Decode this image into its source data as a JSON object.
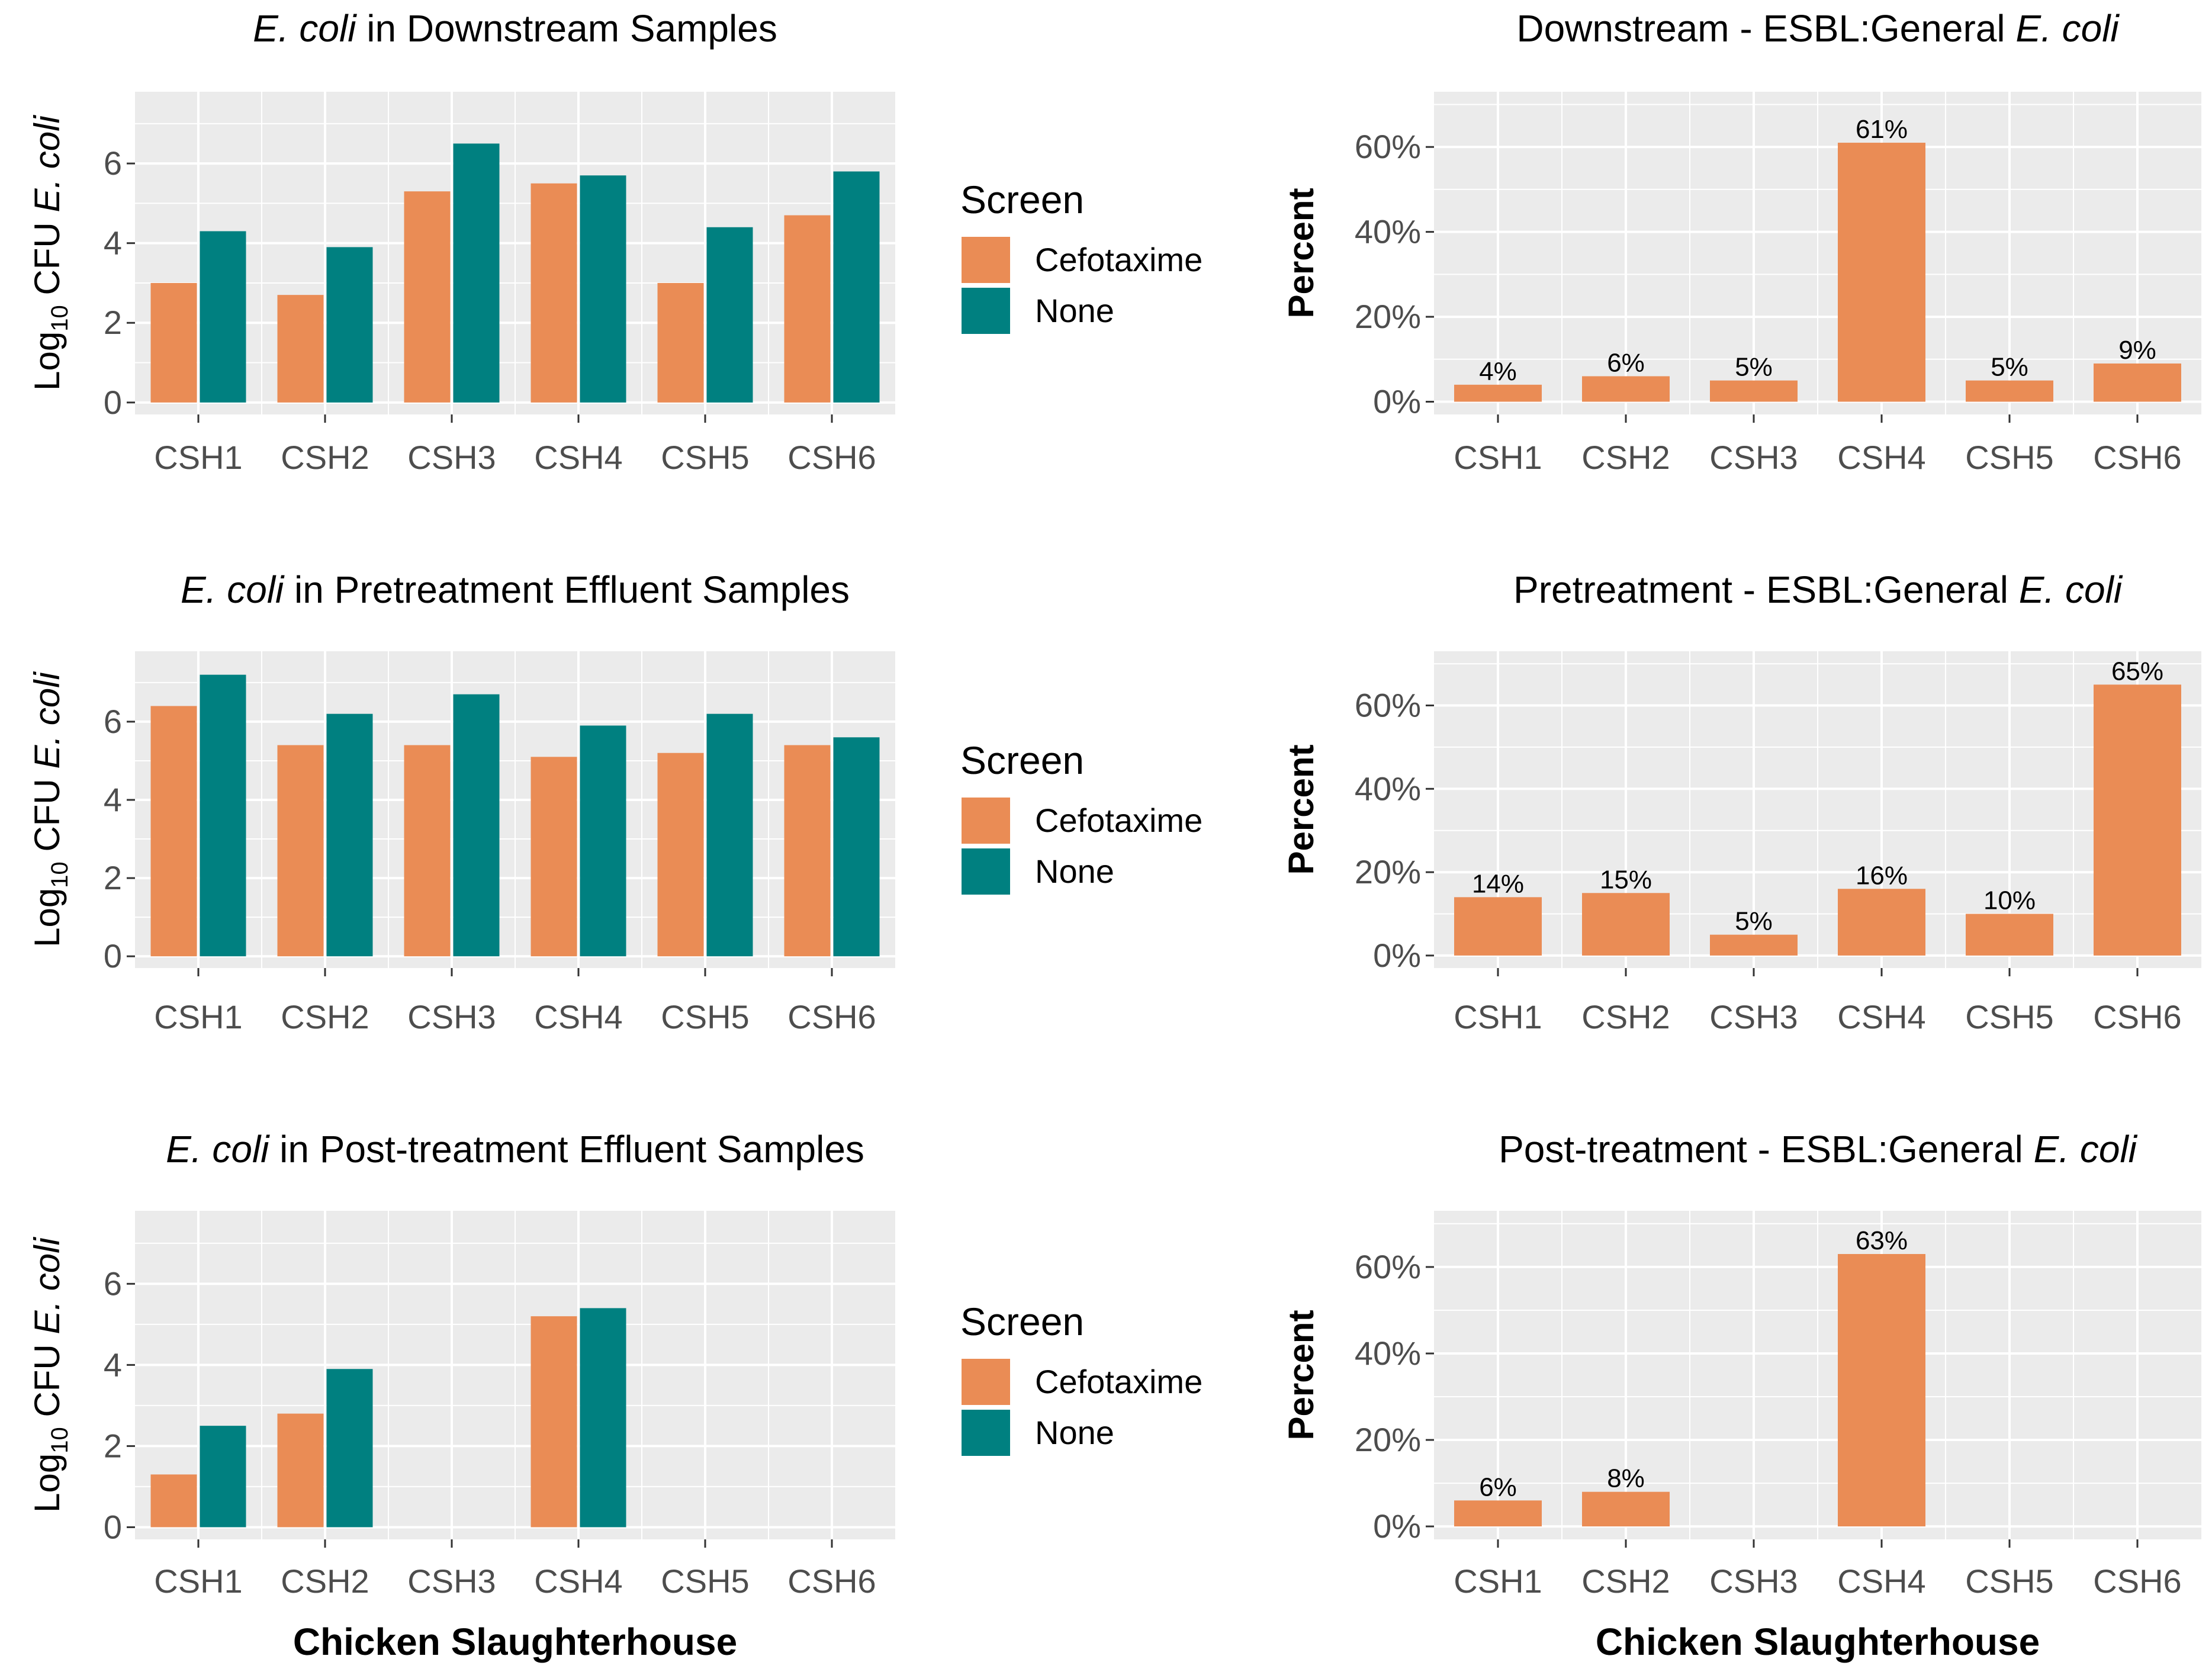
{
  "colors": {
    "cefotaxime": "#EA8C55",
    "none": "#008080",
    "panel_bg": "#EBEBEB",
    "grid": "#FFFFFF"
  },
  "shared": {
    "categories": [
      "CSH1",
      "CSH2",
      "CSH3",
      "CSH4",
      "CSH5",
      "CSH6"
    ],
    "x_axis_label": "Chicken Slaughterhouse",
    "left_y_label_prefix": "Log",
    "left_y_label_sub": "10",
    "left_y_label_mid": " CFU ",
    "left_y_label_italic": "E. coli",
    "right_y_label": "Percent",
    "left_y_ticks": [
      "0",
      "2",
      "4",
      "6"
    ],
    "right_y_ticks": [
      "0%",
      "20%",
      "40%",
      "60%"
    ]
  },
  "legend": {
    "title": "Screen",
    "items": [
      {
        "label": "Cefotaxime",
        "color": "#EA8C55"
      },
      {
        "label": "None",
        "color": "#008080"
      }
    ]
  },
  "chart_data": [
    {
      "type": "bar",
      "title_italic": "E. coli",
      "title_rest": " in Downstream Samples",
      "xlabel": "",
      "ylabel": "Log10 CFU E. coli",
      "ylim": [
        -0.3,
        7.8
      ],
      "categories": [
        "CSH1",
        "CSH2",
        "CSH3",
        "CSH4",
        "CSH5",
        "CSH6"
      ],
      "series": [
        {
          "name": "Cefotaxime",
          "values": [
            3.0,
            2.7,
            5.3,
            5.5,
            3.0,
            4.7
          ]
        },
        {
          "name": "None",
          "values": [
            4.3,
            3.9,
            6.5,
            5.7,
            4.4,
            5.8
          ]
        }
      ]
    },
    {
      "type": "bar",
      "title_rest": "Downstream - ESBL:General ",
      "title_italic": "E. coli",
      "xlabel": "",
      "ylabel": "Percent",
      "ylim": [
        -3,
        73
      ],
      "categories": [
        "CSH1",
        "CSH2",
        "CSH3",
        "CSH4",
        "CSH5",
        "CSH6"
      ],
      "values": [
        4,
        6,
        5,
        61,
        5,
        9
      ],
      "labels": [
        "4%",
        "6%",
        "5%",
        "61%",
        "5%",
        "9%"
      ]
    },
    {
      "type": "bar",
      "title_italic": "E. coli",
      "title_rest": " in Pretreatment Effluent Samples",
      "xlabel": "",
      "ylabel": "Log10 CFU E. coli",
      "ylim": [
        -0.3,
        7.8
      ],
      "categories": [
        "CSH1",
        "CSH2",
        "CSH3",
        "CSH4",
        "CSH5",
        "CSH6"
      ],
      "series": [
        {
          "name": "Cefotaxime",
          "values": [
            6.4,
            5.4,
            5.4,
            5.1,
            5.2,
            5.4
          ]
        },
        {
          "name": "None",
          "values": [
            7.2,
            6.2,
            6.7,
            5.9,
            6.2,
            5.6
          ]
        }
      ]
    },
    {
      "type": "bar",
      "title_rest": "Pretreatment - ESBL:General ",
      "title_italic": "E. coli",
      "xlabel": "",
      "ylabel": "Percent",
      "ylim": [
        -3,
        73
      ],
      "categories": [
        "CSH1",
        "CSH2",
        "CSH3",
        "CSH4",
        "CSH5",
        "CSH6"
      ],
      "values": [
        14,
        15,
        5,
        16,
        10,
        65
      ],
      "labels": [
        "14%",
        "15%",
        "5%",
        "16%",
        "10%",
        "65%"
      ]
    },
    {
      "type": "bar",
      "title_italic": "E. coli",
      "title_rest": " in Post-treatment Effluent Samples",
      "xlabel": "Chicken Slaughterhouse",
      "ylabel": "Log10 CFU E. coli",
      "ylim": [
        -0.3,
        7.8
      ],
      "categories": [
        "CSH1",
        "CSH2",
        "CSH3",
        "CSH4",
        "CSH5",
        "CSH6"
      ],
      "series": [
        {
          "name": "Cefotaxime",
          "values": [
            1.3,
            2.8,
            null,
            5.2,
            null,
            null
          ]
        },
        {
          "name": "None",
          "values": [
            2.5,
            3.9,
            null,
            5.4,
            null,
            null
          ]
        }
      ]
    },
    {
      "type": "bar",
      "title_rest": "Post-treatment - ESBL:General ",
      "title_italic": "E. coli",
      "xlabel": "Chicken Slaughterhouse",
      "ylabel": "Percent",
      "ylim": [
        -3,
        73
      ],
      "categories": [
        "CSH1",
        "CSH2",
        "CSH3",
        "CSH4",
        "CSH5",
        "CSH6"
      ],
      "values": [
        6,
        8,
        null,
        63,
        null,
        null
      ],
      "labels": [
        "6%",
        "8%",
        "",
        "63%",
        "",
        ""
      ]
    }
  ]
}
